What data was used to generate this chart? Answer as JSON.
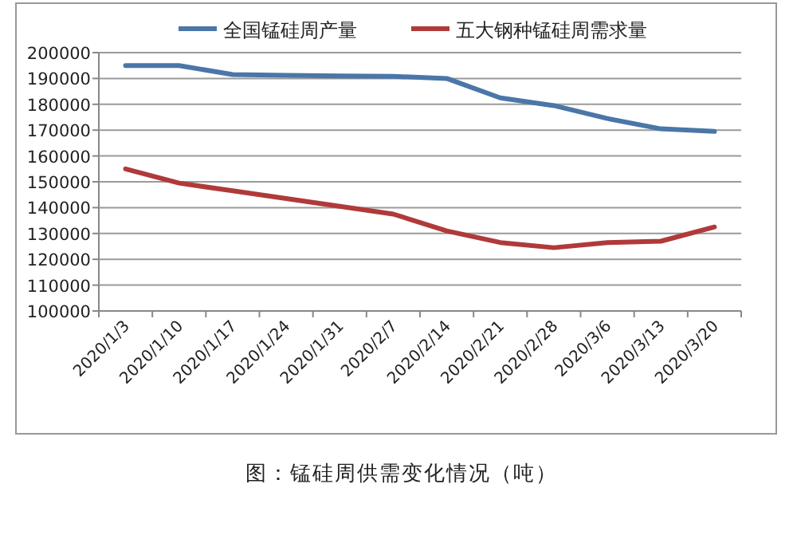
{
  "chart_data": {
    "type": "line",
    "title": "图：锰硅周供需变化情况（吨）",
    "categories": [
      "2020/1/3",
      "2020/1/10",
      "2020/1/17",
      "2020/1/24",
      "2020/1/31",
      "2020/2/7",
      "2020/2/14",
      "2020/2/21",
      "2020/2/28",
      "2020/3/6",
      "2020/3/13",
      "2020/3/20"
    ],
    "series": [
      {
        "name": "全国锰硅周产量",
        "color": "#4a76a8",
        "values": [
          195000,
          195000,
          191500,
          191200,
          191000,
          190800,
          190000,
          182500,
          179500,
          174500,
          170500,
          169500
        ]
      },
      {
        "name": "五大钢种锰硅周需求量",
        "color": "#b03a3a",
        "values": [
          155000,
          149500,
          146500,
          143500,
          140500,
          137500,
          131000,
          126500,
          124500,
          126500,
          127000,
          132500
        ]
      }
    ],
    "ylim": [
      100000,
      200000
    ],
    "yticks": [
      100000,
      110000,
      120000,
      130000,
      140000,
      150000,
      160000,
      170000,
      180000,
      190000,
      200000
    ],
    "grid": "y",
    "legend": "top",
    "marker": "none",
    "line_style": "solid"
  }
}
